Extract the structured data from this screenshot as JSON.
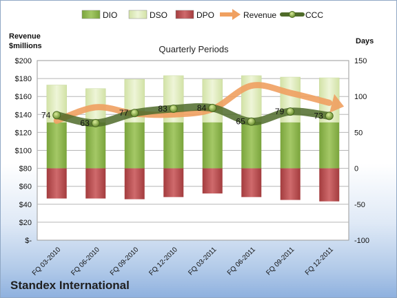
{
  "company": "Standex International",
  "chart_data": {
    "type": "bar",
    "title": "Quarterly Periods",
    "ylabel_left": "Revenue $millions",
    "ylabel_right": "Days",
    "ylim_left": [
      0,
      200
    ],
    "ylim_right": [
      -100,
      150
    ],
    "left_ticks": [
      "$-",
      "$20",
      "$40",
      "$60",
      "$80",
      "$100",
      "$120",
      "$140",
      "$160",
      "$180",
      "$200"
    ],
    "right_ticks": [
      "-100",
      "-50",
      "0",
      "50",
      "100",
      "150"
    ],
    "grid": true,
    "legend_position": "top",
    "categories": [
      "FQ 03-2010",
      "FQ 06-2010",
      "FQ 09-2010",
      "FQ 12-2010",
      "FQ 03-2011",
      "FQ 06-2011",
      "FQ 09-2011",
      "FQ 12-2011"
    ],
    "series": [
      {
        "name": "DIO",
        "axis": "days",
        "kind": "stacked-bar",
        "color": "#8fb84f",
        "values": [
          64,
          64,
          64,
          64,
          64,
          65,
          64,
          64
        ]
      },
      {
        "name": "DSO",
        "axis": "days",
        "kind": "stacked-bar",
        "color": "#ddeab8",
        "values": [
          52,
          47,
          60,
          65,
          60,
          64,
          63,
          62
        ]
      },
      {
        "name": "DPO",
        "axis": "days",
        "kind": "negative-bar",
        "color": "#b94a4c",
        "values": [
          -42,
          -42,
          -43,
          -40,
          -35,
          -40,
          -44,
          -46
        ]
      },
      {
        "name": "Revenue",
        "axis": "revenue",
        "kind": "arrow-line",
        "color": "#f0a060",
        "values": [
          133,
          148,
          141,
          140,
          146,
          172,
          164,
          153
        ]
      },
      {
        "name": "CCC",
        "axis": "days",
        "kind": "line",
        "color": "#6b8c3a",
        "values": [
          74,
          63,
          77,
          83,
          84,
          65,
          79,
          73
        ]
      }
    ],
    "ccc_labels": [
      "74",
      "63",
      "77",
      "83",
      "84",
      "65",
      "79",
      "73"
    ]
  }
}
